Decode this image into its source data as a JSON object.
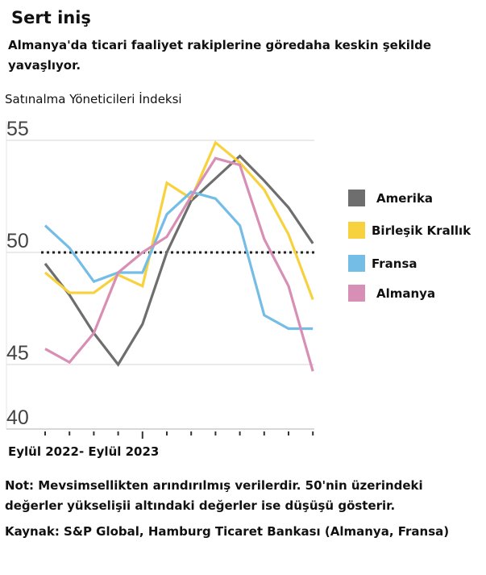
{
  "title": "Sert iniş",
  "subtitle": [
    "Almanya'da ticari faaliyet rakiplerine göredaha keskin şekilde",
    "yavaşlıyor."
  ],
  "chart_data": {
    "type": "line",
    "title": "Sert iniş",
    "ylabel": "Satınalma Yöneticileri İndeksi",
    "xlabel": "Eylül 2022- Eylül 2023",
    "yticks": [
      55,
      50,
      45,
      40
    ],
    "ylim": [
      42.1,
      55
    ],
    "reference_line": 50,
    "x_count": 12,
    "series": [
      {
        "name": "Amerika",
        "color": "#6e6e6e",
        "values": [
          49.5,
          48.1,
          46.4,
          45.0,
          46.8,
          50.0,
          52.3,
          53.3,
          54.3,
          53.2,
          52.0,
          50.4
        ]
      },
      {
        "name": "Birleşik Krallık",
        "color": "#f7d23e",
        "values": [
          49.1,
          48.2,
          48.2,
          49.0,
          48.5,
          53.1,
          52.4,
          54.9,
          54.0,
          52.8,
          50.8,
          47.9
        ]
      },
      {
        "name": "Fransa",
        "color": "#74bde6",
        "values": [
          51.2,
          50.2,
          48.7,
          49.1,
          49.1,
          51.7,
          52.7,
          52.4,
          51.2,
          47.2,
          46.6,
          46.6
        ]
      },
      {
        "name": "Almanya",
        "color": "#d88fb5",
        "values": [
          45.7,
          45.1,
          46.4,
          49.1,
          50.0,
          50.7,
          52.5,
          54.2,
          53.9,
          50.6,
          48.5,
          44.7
        ]
      }
    ],
    "legend": "right"
  },
  "notes": [
    "Not: Mevsimsellikten arındırılmış verilerdir. 50'nin üzerindeki",
    "değerler yükselişii altındaki değerler ise düşüşü gösterir.",
    "Kaynak: S&P Global, Hamburg Ticaret Bankası (Almanya, Fransa)"
  ]
}
